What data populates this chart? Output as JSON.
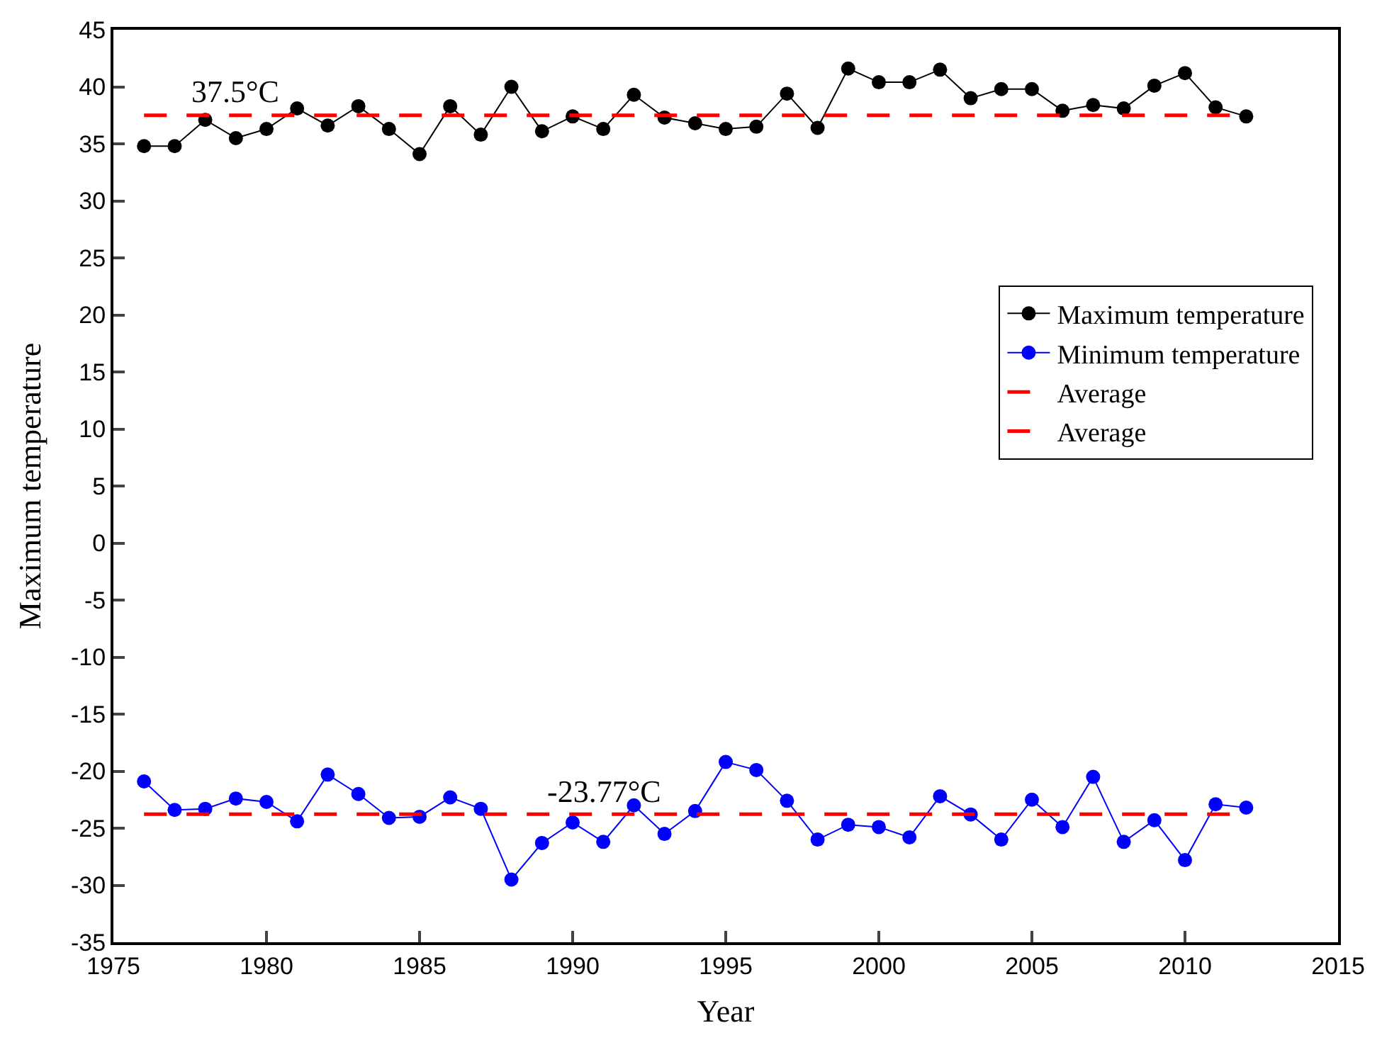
{
  "chart_data": {
    "type": "line",
    "xlabel": "Year",
    "ylabel": "Maximum temperature",
    "x": [
      1976,
      1977,
      1978,
      1979,
      1980,
      1981,
      1982,
      1983,
      1984,
      1985,
      1986,
      1987,
      1988,
      1989,
      1990,
      1991,
      1992,
      1993,
      1994,
      1995,
      1996,
      1997,
      1998,
      1999,
      2000,
      2001,
      2002,
      2003,
      2004,
      2005,
      2006,
      2007,
      2008,
      2009,
      2010,
      2011,
      2012
    ],
    "series": [
      {
        "name": "Maximum temperature",
        "color": "#000000",
        "values": [
          34.8,
          34.8,
          37.1,
          35.5,
          36.3,
          38.1,
          36.6,
          38.3,
          36.3,
          34.1,
          38.3,
          35.8,
          40.0,
          36.1,
          37.4,
          36.3,
          39.3,
          37.3,
          36.8,
          36.3,
          36.5,
          39.4,
          36.4,
          41.6,
          40.4,
          40.4,
          41.5,
          39.0,
          39.8,
          39.8,
          37.9,
          38.4,
          38.1,
          40.1,
          41.2,
          38.2,
          37.4
        ]
      },
      {
        "name": "Minimum temperature",
        "color": "#0000ff",
        "values": [
          -20.9,
          -23.4,
          -23.3,
          -22.4,
          -22.7,
          -24.4,
          -20.3,
          -22.0,
          -24.1,
          -24.0,
          -22.3,
          -23.3,
          -29.5,
          -26.3,
          -24.5,
          -26.2,
          -23.0,
          -25.5,
          -23.5,
          -19.2,
          -19.9,
          -22.6,
          -26.0,
          -24.7,
          -24.9,
          -25.8,
          -22.2,
          -23.8,
          -26.0,
          -22.5,
          -24.9,
          -20.5,
          -26.2,
          -24.3,
          -27.8,
          -22.9,
          -23.2
        ]
      }
    ],
    "ref_lines": [
      {
        "axis": "y",
        "value": 37.5,
        "label": "Average",
        "color": "#ff0000",
        "line_style": "dashed"
      },
      {
        "axis": "y",
        "value": -23.77,
        "label": "Average",
        "color": "#ff0000",
        "line_style": "dashed"
      }
    ],
    "annotations": [
      {
        "text": "37.5°C",
        "x": 1979,
        "y": 37.5
      },
      {
        "text": "-23.77°C",
        "x": 1991,
        "y": -23.77
      }
    ],
    "xlim": [
      1975,
      2015
    ],
    "xticks": [
      1975,
      1980,
      1985,
      1990,
      1995,
      2000,
      2005,
      2010,
      2015
    ],
    "ylim": [
      -35,
      45
    ],
    "yticks": [
      -35,
      -30,
      -25,
      -20,
      -15,
      -10,
      -5,
      0,
      5,
      10,
      15,
      20,
      25,
      30,
      35,
      40,
      45
    ],
    "marker": "circle",
    "line_style": "solid",
    "grid": false,
    "legend": "right"
  }
}
